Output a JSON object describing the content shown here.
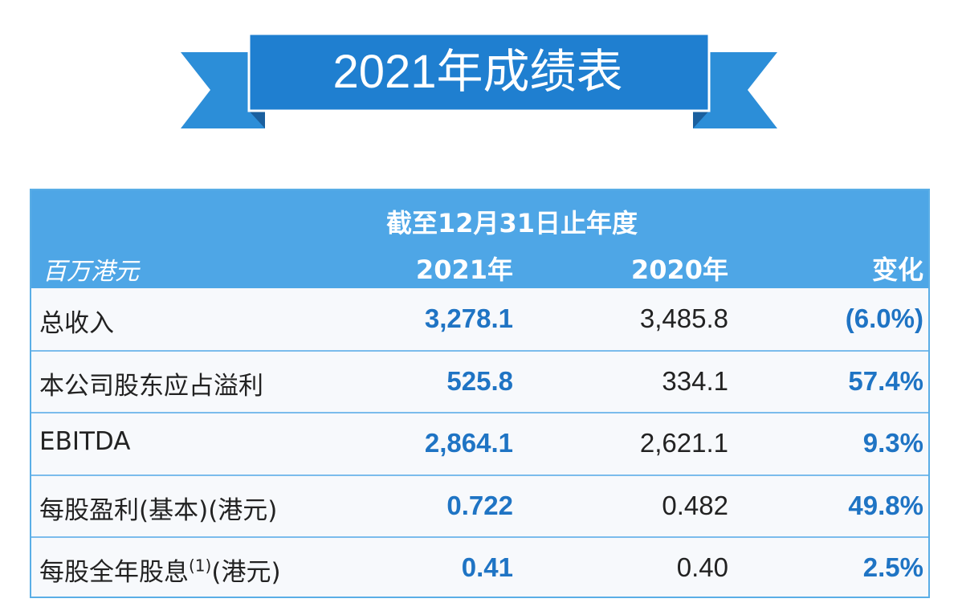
{
  "banner": {
    "title": "2021年成绩表"
  },
  "table": {
    "period": "截至12月31日止年度",
    "unit": "百万港元",
    "columns": [
      "2021年",
      "2020年",
      "变化"
    ],
    "rows": [
      {
        "label": "总收入",
        "values": [
          "3,278.1",
          "3,485.8",
          "(6.0%)"
        ]
      },
      {
        "label": "本公司股东应占溢利",
        "values": [
          "525.8",
          "334.1",
          "57.4%"
        ]
      },
      {
        "label": "EBITDA",
        "values": [
          "2,864.1",
          "2,621.1",
          "9.3%"
        ]
      },
      {
        "label": "每股盈利(基本)(港元)",
        "values": [
          "0.722",
          "0.482",
          "49.8%"
        ]
      },
      {
        "label": "每股全年股息",
        "note": "(1)",
        "suffix": "(港元)",
        "values": [
          "0.41",
          "0.40",
          "2.5%"
        ]
      }
    ]
  }
}
